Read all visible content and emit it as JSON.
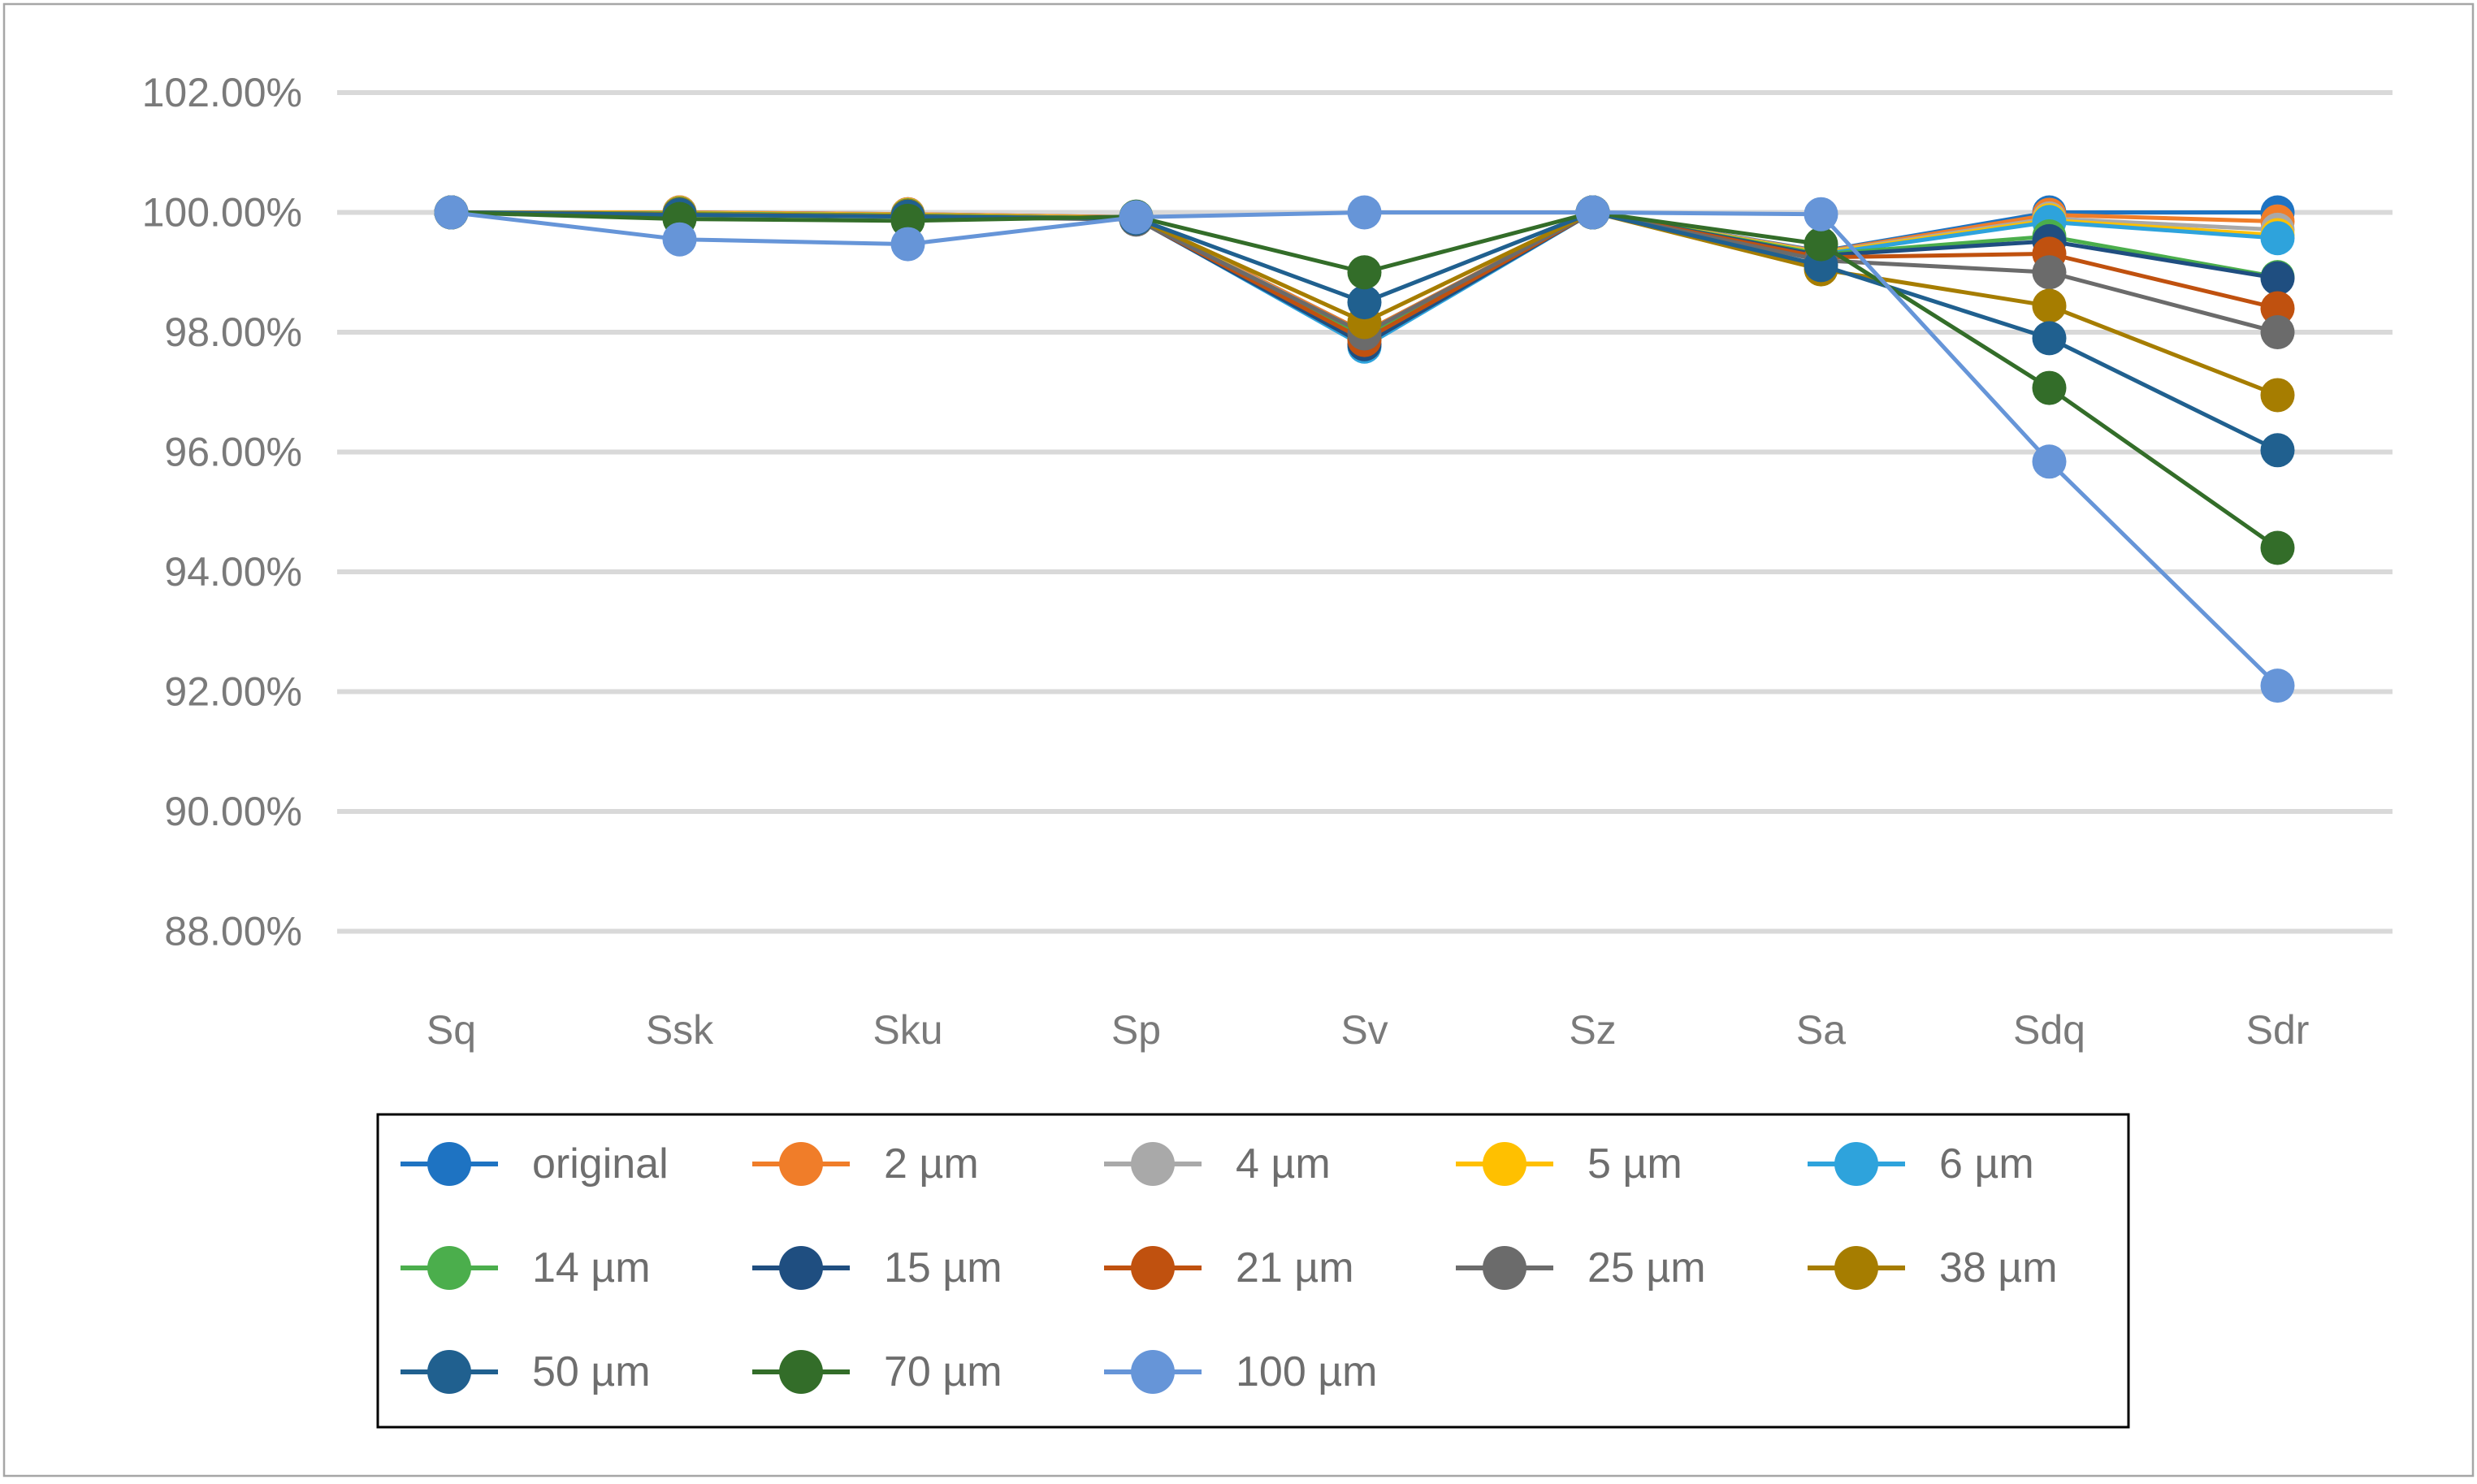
{
  "chart_data": {
    "type": "line",
    "title": "",
    "xlabel": "",
    "ylabel": "",
    "categories": [
      "Sq",
      "Ssk",
      "Sku",
      "Sp",
      "Sv",
      "Sz",
      "Sa",
      "Sdq",
      "Sdr"
    ],
    "y_axis": {
      "tick_labels": [
        "102.00%",
        "100.00%",
        "98.00%",
        "96.00%",
        "94.00%",
        "92.00%",
        "90.00%",
        "88.00%"
      ],
      "tick_values": [
        102,
        100,
        98,
        96,
        94,
        92,
        90,
        88
      ],
      "ylim": [
        87.2,
        102.0
      ],
      "grid": true
    },
    "legend_position": "bottom",
    "series": [
      {
        "name": "original",
        "color": "#1E73C2",
        "values": [
          100.0,
          100.0,
          99.97,
          99.92,
          98.0,
          100.0,
          99.35,
          100.0,
          100.0
        ]
      },
      {
        "name": "2 µm",
        "color": "#F07D29",
        "values": [
          100.0,
          100.0,
          99.97,
          99.92,
          98.0,
          100.0,
          99.34,
          99.96,
          99.85
        ]
      },
      {
        "name": "4 µm",
        "color": "#A9A9A9",
        "values": [
          100.0,
          99.99,
          99.96,
          99.91,
          97.97,
          100.0,
          99.33,
          99.9,
          99.71
        ]
      },
      {
        "name": "5 µm",
        "color": "#FFC000",
        "values": [
          100.0,
          99.99,
          99.96,
          99.91,
          97.95,
          100.0,
          99.32,
          99.87,
          99.62
        ]
      },
      {
        "name": "6 µm",
        "color": "#2EA3DC",
        "values": [
          100.0,
          99.98,
          99.95,
          99.9,
          97.76,
          100.0,
          99.3,
          99.84,
          99.57
        ]
      },
      {
        "name": "14 µm",
        "color": "#4BAE4C",
        "values": [
          100.0,
          99.98,
          99.95,
          99.9,
          97.9,
          100.0,
          99.3,
          99.6,
          98.92
        ]
      },
      {
        "name": "15 µm",
        "color": "#1F4E80",
        "values": [
          100.0,
          99.97,
          99.94,
          99.89,
          97.8,
          100.0,
          99.28,
          99.52,
          98.9
        ]
      },
      {
        "name": "21 µm",
        "color": "#C0510F",
        "values": [
          100.0,
          99.97,
          99.94,
          99.89,
          97.87,
          100.0,
          99.25,
          99.31,
          98.4
        ]
      },
      {
        "name": "25 µm",
        "color": "#6B6B6B",
        "values": [
          100.0,
          99.96,
          99.93,
          99.88,
          97.98,
          100.0,
          99.2,
          99.0,
          98.0
        ]
      },
      {
        "name": "38 µm",
        "color": "#A67D00",
        "values": [
          100.0,
          99.97,
          99.94,
          99.9,
          98.17,
          100.0,
          99.05,
          98.44,
          96.95
        ]
      },
      {
        "name": "50 µm",
        "color": "#20608F",
        "values": [
          100.0,
          99.96,
          99.93,
          99.9,
          98.5,
          100.0,
          99.12,
          97.9,
          96.03
        ]
      },
      {
        "name": "70 µm",
        "color": "#336D29",
        "values": [
          100.0,
          99.89,
          99.86,
          99.93,
          99.0,
          100.0,
          99.47,
          97.07,
          94.4
        ]
      },
      {
        "name": "100 µm",
        "color": "#6695D8",
        "values": [
          100.0,
          99.55,
          99.47,
          99.92,
          100.0,
          100.0,
          99.97,
          95.84,
          92.1
        ]
      }
    ]
  },
  "styles": {
    "background": "#FFFFFF",
    "frame_border_color": "#A6A6A6",
    "grid_color": "#D9D9D9",
    "tick_text_color": "#7A7A7A",
    "category_text_color": "#7A7A7A",
    "legend_text_color": "#6E6E6E",
    "legend_border_color": "#000000"
  }
}
